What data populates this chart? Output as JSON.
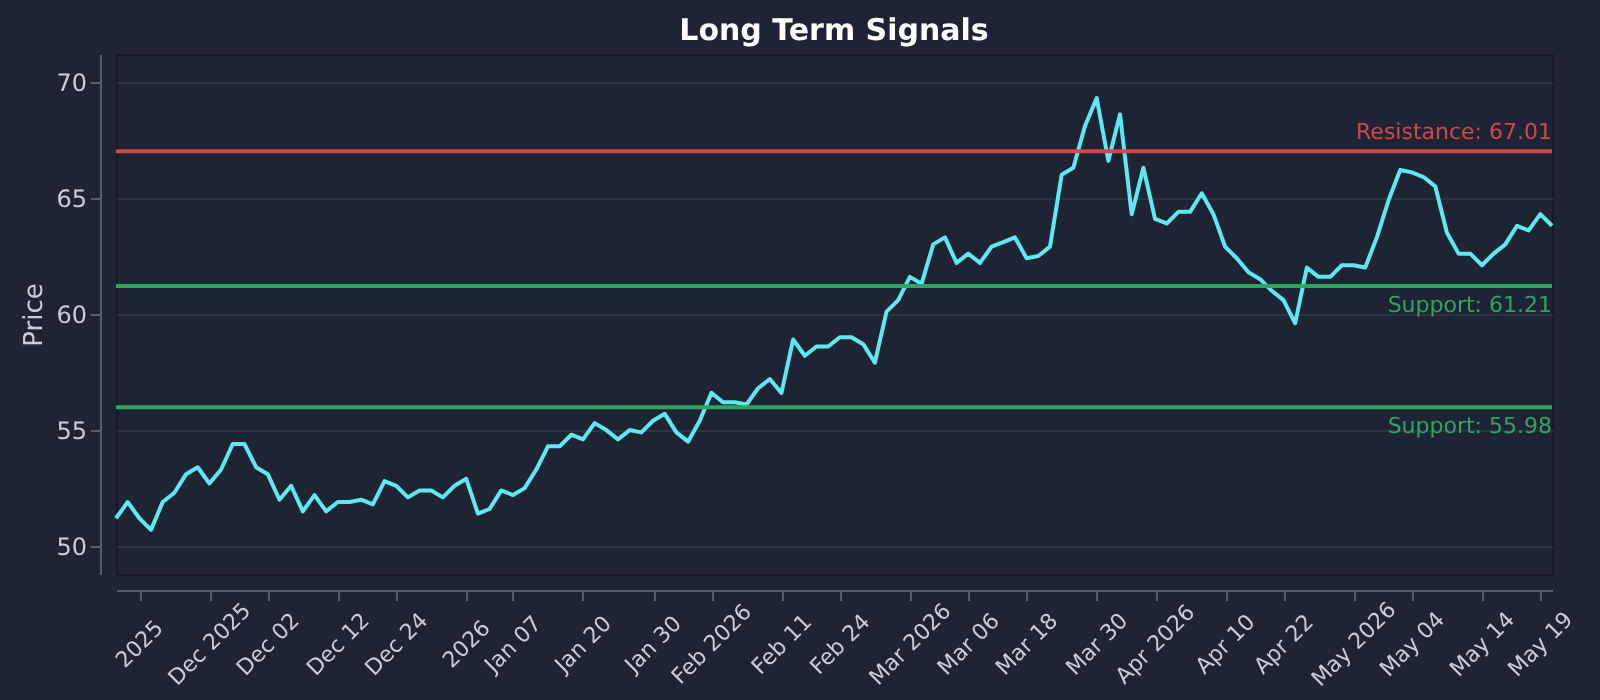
{
  "chart_data": {
    "type": "line",
    "title": "Long Term Signals",
    "ylabel": "Price",
    "categories": [
      null,
      null,
      "2025",
      null,
      null,
      null,
      null,
      null,
      "Dec 2025",
      null,
      null,
      null,
      null,
      "Dec 02",
      null,
      null,
      null,
      null,
      null,
      "Dec 12",
      null,
      null,
      null,
      null,
      "Dec 24",
      null,
      null,
      null,
      null,
      null,
      "2026",
      null,
      null,
      null,
      "Jan 07",
      null,
      null,
      null,
      null,
      null,
      "Jan 20",
      null,
      null,
      null,
      null,
      null,
      "Jan 30",
      null,
      null,
      null,
      null,
      "Feb 2026",
      null,
      null,
      null,
      null,
      null,
      "Feb 11",
      null,
      null,
      null,
      null,
      "Feb 24",
      null,
      null,
      null,
      null,
      null,
      "Mar 2026",
      null,
      null,
      null,
      null,
      "Mar 06",
      null,
      null,
      null,
      null,
      "Mar 18",
      null,
      null,
      null,
      null,
      null,
      "Mar 30",
      null,
      null,
      null,
      null,
      "Apr 2026",
      null,
      null,
      null,
      null,
      null,
      "Apr 10",
      null,
      null,
      null,
      null,
      "Apr 22",
      null,
      null,
      null,
      null,
      null,
      "May 2026",
      null,
      null,
      null,
      null,
      "May 04",
      null,
      null,
      null,
      null,
      null,
      "May 14",
      null,
      null,
      null,
      null,
      "May 19",
      null
    ],
    "series": [
      {
        "color": "#5ee8f0",
        "values": [
          51.2,
          51.9,
          51.2,
          50.7,
          51.9,
          52.3,
          53.1,
          53.4,
          52.7,
          53.3,
          54.4,
          54.4,
          53.4,
          53.1,
          52.0,
          52.6,
          51.5,
          52.2,
          51.5,
          51.9,
          51.9,
          52.0,
          51.8,
          52.8,
          52.6,
          52.1,
          52.4,
          52.4,
          52.1,
          52.6,
          52.9,
          51.4,
          51.6,
          52.4,
          52.2,
          52.5,
          53.3,
          54.3,
          54.3,
          54.8,
          54.6,
          55.3,
          55.0,
          54.6,
          55.0,
          54.9,
          55.4,
          55.7,
          54.9,
          54.5,
          55.4,
          56.6,
          56.2,
          56.2,
          56.1,
          56.8,
          57.2,
          56.6,
          58.9,
          58.2,
          58.6,
          58.6,
          59.0,
          59.0,
          58.7,
          57.9,
          60.1,
          60.6,
          61.6,
          61.3,
          63.0,
          63.3,
          62.2,
          62.6,
          62.2,
          62.9,
          63.1,
          63.3,
          62.4,
          62.5,
          62.9,
          66.0,
          66.3,
          68.1,
          69.3,
          66.6,
          68.6,
          64.3,
          66.3,
          64.1,
          63.9,
          64.4,
          64.4,
          65.2,
          64.3,
          62.9,
          62.4,
          61.8,
          61.5,
          61.0,
          60.6,
          59.6,
          62.0,
          61.6,
          61.6,
          62.1,
          62.1,
          62.0,
          63.3,
          64.9,
          66.2,
          66.1,
          65.9,
          65.5,
          63.5,
          62.6,
          62.6,
          62.1,
          62.6,
          63.0,
          63.8,
          63.6,
          64.3,
          63.8
        ]
      }
    ],
    "ylim": [
      48.8,
      71.2
    ],
    "yticks": [
      50,
      55,
      60,
      65,
      70
    ],
    "grid": "y",
    "ref_lines": [
      {
        "axis": "y",
        "value": 67.01,
        "label": "Resistance: 67.01",
        "color": "#d0474c"
      },
      {
        "axis": "y",
        "value": 61.21,
        "label": "Support: 61.21",
        "color": "#2fa55e"
      },
      {
        "axis": "y",
        "value": 55.98,
        "label": "Support: 55.98",
        "color": "#2fa55e"
      }
    ]
  }
}
